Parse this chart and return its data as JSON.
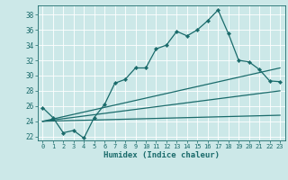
{
  "xlabel": "Humidex (Indice chaleur)",
  "bg_color": "#cce8e8",
  "grid_color": "#ffffff",
  "line_color": "#1a6b6b",
  "marker": "D",
  "marker_size": 2.2,
  "line_width": 0.9,
  "ylim": [
    21.5,
    39.2
  ],
  "xlim": [
    -0.5,
    23.5
  ],
  "yticks": [
    22,
    24,
    26,
    28,
    30,
    32,
    34,
    36,
    38
  ],
  "xticks": [
    0,
    1,
    2,
    3,
    4,
    5,
    6,
    7,
    8,
    9,
    10,
    11,
    12,
    13,
    14,
    15,
    16,
    17,
    18,
    19,
    20,
    21,
    22,
    23
  ],
  "series": [
    {
      "x": [
        0,
        1,
        2,
        3,
        4,
        5,
        6,
        7,
        8,
        9,
        10,
        11,
        12,
        13,
        14,
        15,
        16,
        17,
        18,
        19,
        20,
        21,
        22,
        23
      ],
      "y": [
        25.8,
        24.5,
        22.5,
        22.8,
        21.8,
        24.5,
        26.2,
        29.0,
        29.5,
        31.0,
        31.0,
        33.5,
        34.0,
        35.8,
        35.2,
        36.0,
        37.2,
        38.6,
        35.5,
        32.0,
        31.8,
        30.8,
        29.3,
        29.2
      ],
      "has_markers": true
    },
    {
      "x": [
        0,
        23
      ],
      "y": [
        24.0,
        31.0
      ],
      "has_markers": false
    },
    {
      "x": [
        0,
        23
      ],
      "y": [
        24.0,
        28.0
      ],
      "has_markers": false
    },
    {
      "x": [
        0,
        23
      ],
      "y": [
        24.0,
        24.8
      ],
      "has_markers": false
    }
  ]
}
